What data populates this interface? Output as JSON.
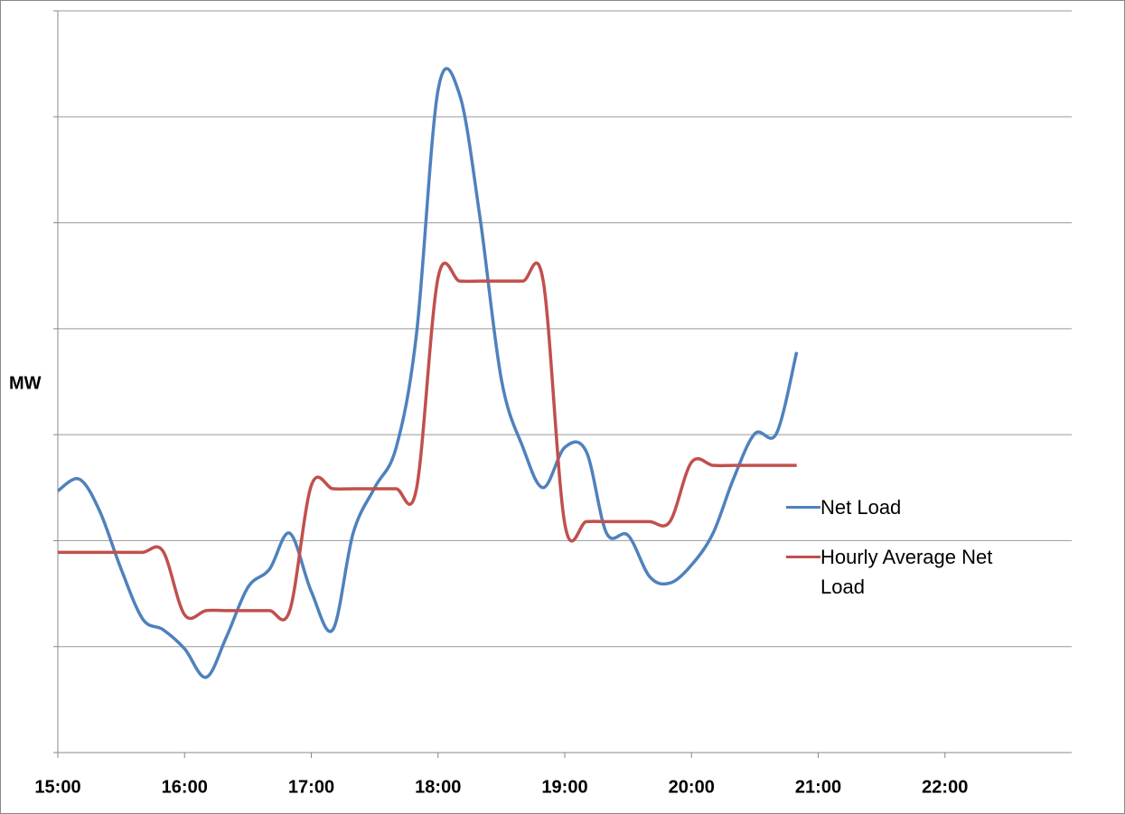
{
  "chart_data": {
    "type": "line",
    "y_label": "MW",
    "x": [
      15,
      15.17,
      15.33,
      15.5,
      15.67,
      15.83,
      16,
      16.17,
      16.33,
      16.5,
      16.67,
      16.83,
      17,
      17.17,
      17.33,
      17.5,
      17.67,
      17.83,
      18,
      18.17,
      18.33,
      18.5,
      18.67,
      18.83,
      19,
      19.17,
      19.33,
      19.5,
      19.67,
      19.83,
      20,
      20.17,
      20.33,
      20.5,
      20.67,
      20.83
    ],
    "series": [
      {
        "name": "Net Load",
        "color": "#4f81bd",
        "values": [
          2.47,
          2.58,
          2.28,
          1.73,
          1.26,
          1.16,
          0.98,
          0.71,
          1.09,
          1.56,
          1.73,
          2.07,
          1.52,
          1.16,
          2.07,
          2.5,
          2.88,
          3.95,
          6.25,
          6.21,
          5.06,
          3.52,
          2.88,
          2.5,
          2.88,
          2.84,
          2.07,
          2.05,
          1.66,
          1.6,
          1.77,
          2.07,
          2.58,
          3.01,
          3.01,
          3.78
        ]
      },
      {
        "name": "Hourly Average Net Load",
        "color": "#c0504d",
        "values": [
          1.89,
          1.89,
          1.89,
          1.89,
          1.89,
          1.9,
          1.3,
          1.34,
          1.34,
          1.34,
          1.34,
          1.34,
          2.52,
          2.49,
          2.49,
          2.49,
          2.49,
          2.49,
          4.48,
          4.45,
          4.45,
          4.45,
          4.45,
          4.45,
          2.16,
          2.18,
          2.18,
          2.18,
          2.18,
          2.18,
          2.74,
          2.71,
          2.71,
          2.71,
          2.71,
          2.71
        ]
      }
    ],
    "xlim": [
      15,
      23
    ],
    "xticks": [
      {
        "value": 15,
        "label": "15:00"
      },
      {
        "value": 16,
        "label": "16:00"
      },
      {
        "value": 17,
        "label": "17:00"
      },
      {
        "value": 18,
        "label": "18:00"
      },
      {
        "value": 19,
        "label": "19:00"
      },
      {
        "value": 20,
        "label": "20:00"
      },
      {
        "value": 21,
        "label": "21:00"
      },
      {
        "value": 22,
        "label": "22:00"
      }
    ],
    "ylim": [
      0,
      7
    ],
    "yticks": [
      0,
      1,
      2,
      3,
      4,
      5,
      6,
      7
    ],
    "grid": true,
    "legend": "right"
  }
}
